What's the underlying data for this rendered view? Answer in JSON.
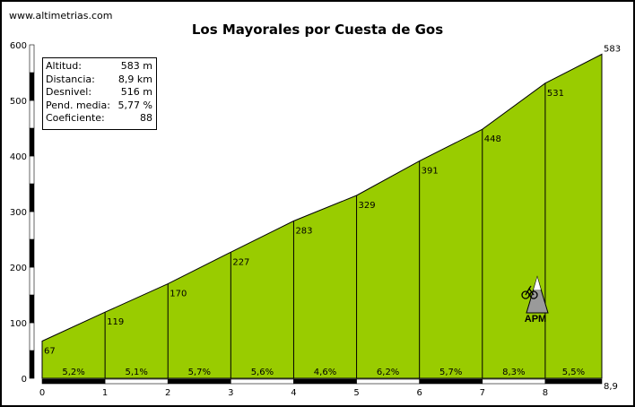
{
  "site": "www.altimetrias.com",
  "title": "Los Mayorales por Cuesta de Gos",
  "info": [
    {
      "label": "Altitud:",
      "value": "583 m"
    },
    {
      "label": "Distancia:",
      "value": "8,9 km"
    },
    {
      "label": "Desnivel:",
      "value": "516 m"
    },
    {
      "label": "Pend. media:",
      "value": "5,77 %"
    },
    {
      "label": "Coeficiente:",
      "value": "88"
    }
  ],
  "logo_text": "APM",
  "colors": {
    "fill": "#99cc00",
    "line": "#000000",
    "background": "#ffffff"
  },
  "chart_data": {
    "type": "area",
    "title": "Los Mayorales por Cuesta de Gos",
    "xlabel": "",
    "ylabel": "",
    "x": [
      0,
      1,
      2,
      3,
      4,
      5,
      6,
      7,
      8,
      8.9
    ],
    "y": [
      67,
      119,
      170,
      227,
      283,
      329,
      391,
      448,
      531,
      583
    ],
    "point_labels": [
      "67",
      "119",
      "170",
      "227",
      "283",
      "329",
      "391",
      "448",
      "531",
      "583"
    ],
    "segment_grades": [
      "5,2%",
      "5,1%",
      "5,7%",
      "5,6%",
      "4,6%",
      "6,2%",
      "5,7%",
      "8,3%",
      "5,5%"
    ],
    "xticks": [
      "0",
      "1",
      "2",
      "3",
      "4",
      "5",
      "6",
      "7",
      "8"
    ],
    "x_end_label": "8,9",
    "yticks": [
      "0",
      "100",
      "200",
      "300",
      "400",
      "500",
      "600"
    ],
    "xlim": [
      0,
      8.9
    ],
    "ylim": [
      0,
      600
    ],
    "grid": false
  }
}
